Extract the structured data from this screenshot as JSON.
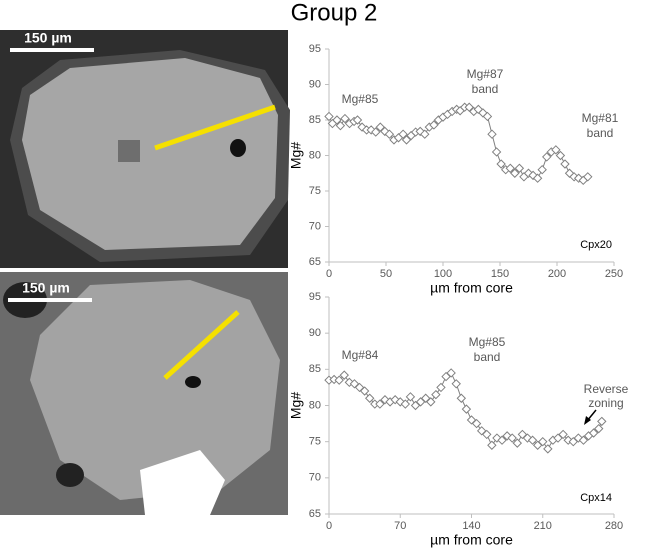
{
  "title": "Group 2",
  "images": [
    {
      "scale_label": "150 µm"
    },
    {
      "scale_label": "150 µm"
    }
  ],
  "chart_data": [
    {
      "type": "line",
      "xlabel": "µm from core",
      "ylabel": "Mg#",
      "label": "Cpx20",
      "annotations": [
        [
          "Mg#85"
        ],
        [
          "Mg#87",
          "band"
        ],
        [
          "Mg#81",
          "band"
        ]
      ],
      "xlim": [
        0,
        250
      ],
      "xticks": [
        0,
        50,
        100,
        150,
        200,
        250
      ],
      "ylim": [
        65,
        95
      ],
      "yticks": [
        65,
        70,
        75,
        80,
        85,
        90,
        95
      ],
      "x": [
        0,
        3,
        7,
        10,
        14,
        18,
        22,
        25,
        29,
        33,
        37,
        41,
        45,
        49,
        53,
        57,
        61,
        65,
        68,
        72,
        76,
        80,
        84,
        88,
        92,
        96,
        100,
        104,
        108,
        112,
        115,
        119,
        123,
        127,
        131,
        135,
        139,
        143,
        147,
        151,
        155,
        159,
        163,
        167,
        171,
        175,
        179,
        183,
        187,
        191,
        195,
        199,
        203,
        207,
        211,
        215,
        219,
        223,
        227
      ],
      "series": [
        {
          "color": "#808080",
          "values": [
            85.5,
            84.5,
            85,
            84.2,
            85.2,
            84.5,
            84.8,
            85,
            84,
            83.6,
            83.6,
            83.3,
            84,
            83.4,
            83,
            82.2,
            82.5,
            83,
            82.2,
            82.8,
            83.3,
            83.4,
            83,
            84,
            84.3,
            85,
            85.4,
            85.8,
            86.2,
            86.5,
            86.3,
            86.8,
            86.8,
            86.2,
            86.5,
            86,
            85.5,
            83,
            80.5,
            78.8,
            78,
            78.2,
            77.5,
            78.2,
            77,
            77.5,
            77.2,
            76.8,
            78,
            79.8,
            80.5,
            80.8,
            80,
            78.8,
            77.5,
            77,
            76.8,
            76.5,
            77
          ]
        }
      ]
    },
    {
      "type": "line",
      "xlabel": "µm from core",
      "ylabel": "Mg#",
      "label": "Cpx14",
      "annotations": [
        [
          "Mg#84"
        ],
        [
          "Mg#85",
          "band"
        ],
        [
          "Reverse",
          "zoning"
        ]
      ],
      "xlim": [
        0,
        280
      ],
      "xticks": [
        0,
        70,
        140,
        210,
        280
      ],
      "ylim": [
        65,
        95
      ],
      "yticks": [
        65,
        70,
        75,
        80,
        85,
        90,
        95
      ],
      "x": [
        0,
        5,
        10,
        15,
        20,
        25,
        30,
        35,
        40,
        45,
        50,
        55,
        60,
        65,
        70,
        75,
        80,
        85,
        90,
        95,
        100,
        105,
        110,
        115,
        120,
        125,
        130,
        135,
        140,
        145,
        150,
        155,
        160,
        165,
        170,
        175,
        180,
        185,
        190,
        195,
        200,
        205,
        210,
        215,
        220,
        225,
        230,
        235,
        240,
        245,
        250,
        255,
        260,
        265,
        268
      ],
      "series": [
        {
          "color": "#808080",
          "values": [
            83.5,
            83.6,
            83.5,
            84.2,
            83.2,
            83,
            82.5,
            82,
            81,
            80.2,
            80.2,
            80.8,
            80.5,
            80.8,
            80.5,
            80.2,
            81.2,
            80,
            80.5,
            81,
            80.5,
            81.5,
            82.5,
            84,
            84.5,
            83,
            81,
            79.5,
            78,
            77.5,
            76.5,
            76,
            74.5,
            75.5,
            75.2,
            75.8,
            75.5,
            74.8,
            76,
            75.5,
            75.2,
            74.5,
            75,
            74,
            75.2,
            75.5,
            76,
            75.2,
            75,
            75.5,
            75.2,
            75.8,
            76.2,
            76.8,
            77.8
          ]
        }
      ]
    }
  ]
}
